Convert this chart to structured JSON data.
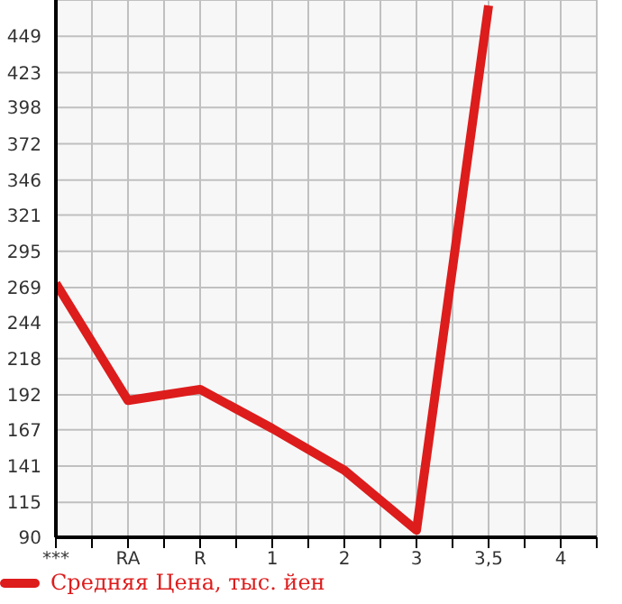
{
  "chart_data": {
    "type": "line",
    "categories": [
      "***",
      "RA",
      "R",
      "1",
      "2",
      "3",
      "3,5",
      "4"
    ],
    "series": [
      {
        "name": "Средняя Цена, тыс. йен",
        "color": "#dd1c1c",
        "values": [
          272,
          188,
          196,
          168,
          138,
          95,
          471,
          null
        ]
      }
    ],
    "ylim": [
      90,
      475
    ],
    "yticks": [
      90,
      115,
      141,
      167,
      192,
      218,
      244,
      269,
      295,
      321,
      346,
      372,
      398,
      423,
      449
    ],
    "grid": true,
    "legend": "bottom",
    "marker": "none",
    "line_style": "solid"
  }
}
